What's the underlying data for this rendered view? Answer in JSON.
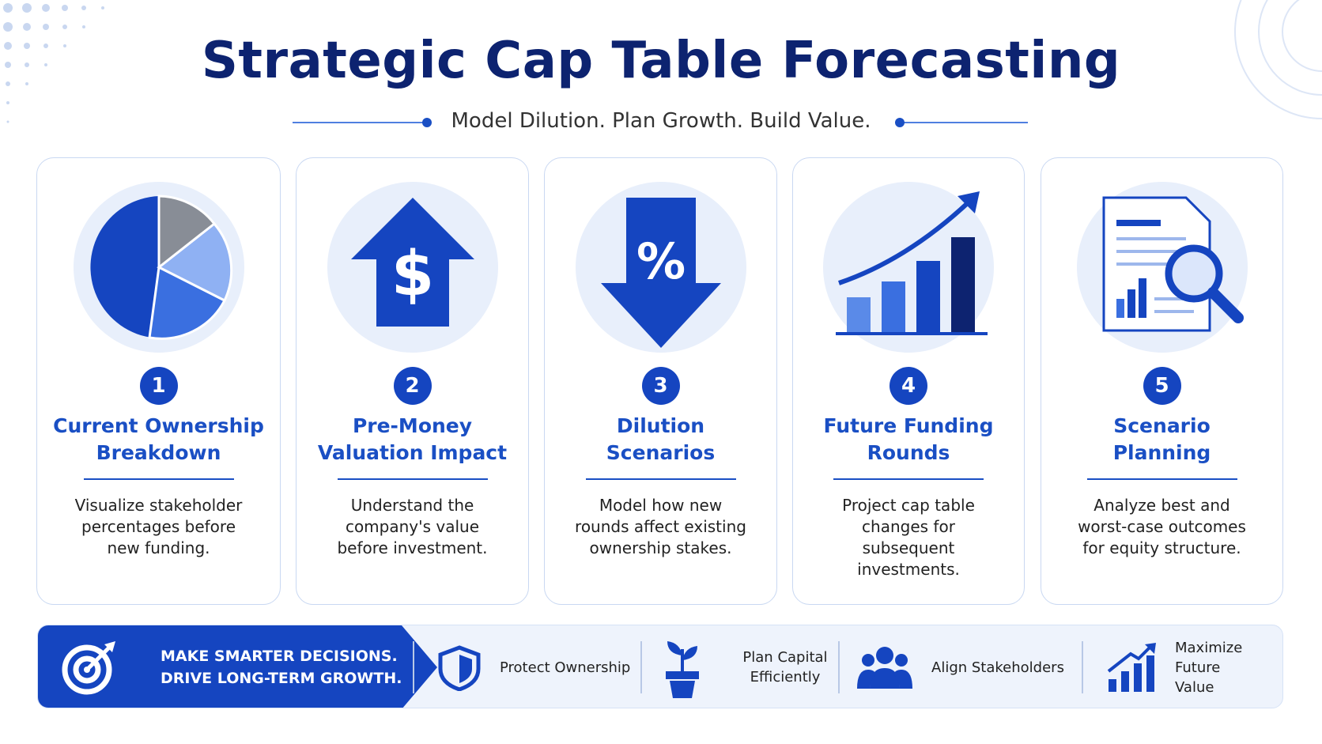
{
  "header": {
    "title": "Strategic Cap Table Forecasting",
    "subtitle": "Model Dilution. Plan Growth. Build Value."
  },
  "cards": [
    {
      "number": 1,
      "title": [
        "Current Ownership",
        "Breakdown"
      ],
      "description": "Visualize stakeholder percentages before new funding."
    },
    {
      "number": 2,
      "title": [
        "Pre-Money",
        "Valuation Impact"
      ],
      "description": "Understand the company's value before investment."
    },
    {
      "number": 3,
      "title": [
        "Dilution",
        "Scenarios"
      ],
      "description": "Model how new rounds affect existing ownership stakes."
    },
    {
      "number": 4,
      "title": [
        "Future Funding",
        "Rounds"
      ],
      "description": "Project cap table changes for subsequent investments."
    },
    {
      "number": 5,
      "title": [
        "Scenario",
        "Planning"
      ],
      "description": "Analyze best and worst-case outcomes for equity structure."
    }
  ],
  "footer": {
    "tagline": [
      "MAKE SMARTER DECISIONS.",
      "DRIVE LONG-TERM GROWTH."
    ],
    "items": [
      "Protect Ownership",
      "Plan Capital Efficiently",
      "Align Stakeholders",
      "Maximize Future Value"
    ]
  }
}
